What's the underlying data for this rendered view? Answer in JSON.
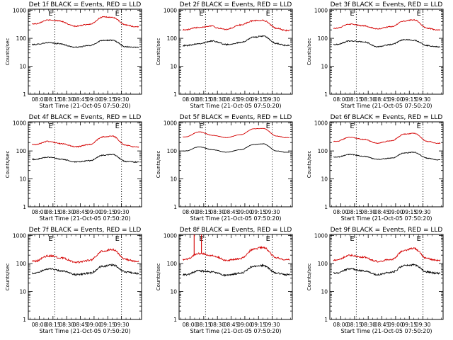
{
  "figure": {
    "layout": "3x3 grid of detector count-rate panels"
  },
  "colors": {
    "events": "#000000",
    "lld": "#d40000",
    "background": "#ffffff",
    "markers": "#000000"
  },
  "chart_data": [
    {
      "type": "line",
      "title": "Det 1f BLACK = Events, RED = LLD",
      "xlabel": "Start Time (21-Oct-05 07:50:20)",
      "ylabel": "Counts/sec",
      "x_ticks": [
        "08:00",
        "08:15",
        "08:30",
        "08:45",
        "09:00",
        "09:15",
        "09:30"
      ],
      "y_ticks": [
        "1",
        "10",
        "100",
        "1000"
      ],
      "yscale": "log",
      "ylim": [
        1,
        1100
      ],
      "x_range_minutes": [
        -12,
        112
      ],
      "event_markers": [
        17,
        90
      ],
      "marker_labels": [
        "E",
        "E"
      ],
      "noise": 0.04,
      "spikes": [],
      "series": [
        {
          "color": "#000000",
          "samples": [
            [
              -5,
              60
            ],
            [
              10,
              70
            ],
            [
              20,
              65
            ],
            [
              40,
              48
            ],
            [
              55,
              55
            ],
            [
              70,
              85
            ],
            [
              80,
              85
            ],
            [
              95,
              50
            ],
            [
              105,
              48
            ]
          ]
        },
        {
          "color": "#d40000",
          "samples": [
            [
              -5,
              330
            ],
            [
              10,
              450
            ],
            [
              20,
              430
            ],
            [
              40,
              270
            ],
            [
              55,
              320
            ],
            [
              70,
              580
            ],
            [
              80,
              560
            ],
            [
              95,
              300
            ],
            [
              105,
              260
            ]
          ]
        }
      ]
    },
    {
      "type": "line",
      "title": "Det 2f BLACK = Events, RED = LLD",
      "xlabel": "Start Time (21-Oct-05 07:50:20)",
      "ylabel": "Counts/sec",
      "x_ticks": [
        "08:00",
        "08:15",
        "08:30",
        "08:45",
        "09:00",
        "09:15",
        "09:30"
      ],
      "y_ticks": [
        "1",
        "10",
        "100",
        "1000"
      ],
      "yscale": "log",
      "ylim": [
        1,
        1100
      ],
      "x_range_minutes": [
        -12,
        112
      ],
      "event_markers": [
        17,
        90
      ],
      "marker_labels": [
        "E",
        "E"
      ],
      "noise": 0.05,
      "spikes": [],
      "series": [
        {
          "color": "#000000",
          "samples": [
            [
              -5,
              55
            ],
            [
              10,
              65
            ],
            [
              25,
              80
            ],
            [
              40,
              60
            ],
            [
              55,
              70
            ],
            [
              70,
              110
            ],
            [
              80,
              120
            ],
            [
              95,
              65
            ],
            [
              105,
              55
            ]
          ]
        },
        {
          "color": "#d40000",
          "samples": [
            [
              -5,
              200
            ],
            [
              10,
              250
            ],
            [
              25,
              280
            ],
            [
              30,
              230
            ],
            [
              40,
              210
            ],
            [
              55,
              300
            ],
            [
              70,
              430
            ],
            [
              80,
              440
            ],
            [
              95,
              230
            ],
            [
              105,
              190
            ]
          ]
        }
      ]
    },
    {
      "type": "line",
      "title": "Det 3f BLACK = Events, RED = LLD",
      "xlabel": "Start Time (21-Oct-05 07:50:20)",
      "ylabel": "Counts/sec",
      "x_ticks": [
        "08:00",
        "08:15",
        "08:30",
        "08:45",
        "09:00",
        "09:15",
        "09:30"
      ],
      "y_ticks": [
        "1",
        "10",
        "100",
        "1000"
      ],
      "yscale": "log",
      "ylim": [
        1,
        1100
      ],
      "x_range_minutes": [
        -12,
        112
      ],
      "event_markers": [
        17,
        90
      ],
      "marker_labels": [
        "E",
        "E"
      ],
      "noise": 0.04,
      "spikes": [],
      "series": [
        {
          "color": "#000000",
          "samples": [
            [
              -5,
              60
            ],
            [
              10,
              80
            ],
            [
              25,
              75
            ],
            [
              40,
              50
            ],
            [
              55,
              60
            ],
            [
              70,
              90
            ],
            [
              80,
              85
            ],
            [
              95,
              55
            ],
            [
              105,
              50
            ]
          ]
        },
        {
          "color": "#d40000",
          "samples": [
            [
              -5,
              230
            ],
            [
              10,
              320
            ],
            [
              25,
              280
            ],
            [
              40,
              220
            ],
            [
              55,
              260
            ],
            [
              70,
              420
            ],
            [
              80,
              460
            ],
            [
              95,
              230
            ],
            [
              105,
              200
            ]
          ]
        }
      ]
    },
    {
      "type": "line",
      "title": "Det 4f BLACK = Events, RED = LLD",
      "xlabel": "Start Time (21-Oct-05 07:50:20)",
      "ylabel": "Counts/sec",
      "x_ticks": [
        "08:00",
        "08:15",
        "08:30",
        "08:45",
        "09:00",
        "09:15",
        "09:30"
      ],
      "y_ticks": [
        "1",
        "10",
        "100",
        "1000"
      ],
      "yscale": "log",
      "ylim": [
        1,
        1100
      ],
      "x_range_minutes": [
        -12,
        112
      ],
      "event_markers": [
        17,
        90
      ],
      "marker_labels": [
        "E",
        "E"
      ],
      "noise": 0.04,
      "spikes": [],
      "series": [
        {
          "color": "#000000",
          "samples": [
            [
              -5,
              50
            ],
            [
              10,
              60
            ],
            [
              25,
              50
            ],
            [
              40,
              40
            ],
            [
              55,
              45
            ],
            [
              70,
              70
            ],
            [
              80,
              75
            ],
            [
              95,
              42
            ],
            [
              105,
              40
            ]
          ]
        },
        {
          "color": "#d40000",
          "samples": [
            [
              -5,
              170
            ],
            [
              10,
              220
            ],
            [
              25,
              180
            ],
            [
              40,
              140
            ],
            [
              55,
              170
            ],
            [
              70,
              320
            ],
            [
              80,
              340
            ],
            [
              95,
              160
            ],
            [
              105,
              140
            ]
          ]
        }
      ]
    },
    {
      "type": "line",
      "title": "Det 5f BLACK = Events, RED = LLD",
      "xlabel": "Start Time (21-Oct-05 07:50:20)",
      "ylabel": "Counts/sec",
      "x_ticks": [
        "08:00",
        "08:15",
        "08:30",
        "08:45",
        "09:00",
        "09:15",
        "09:30"
      ],
      "y_ticks": [
        "1",
        "10",
        "100",
        "1000"
      ],
      "yscale": "log",
      "ylim": [
        1,
        1100
      ],
      "x_range_minutes": [
        -12,
        112
      ],
      "event_markers": [
        17,
        90
      ],
      "marker_labels": [
        "E",
        "E"
      ],
      "noise": 0.015,
      "spikes": [],
      "series": [
        {
          "color": "#000000",
          "samples": [
            [
              -5,
              100
            ],
            [
              10,
              140
            ],
            [
              25,
              110
            ],
            [
              40,
              90
            ],
            [
              55,
              110
            ],
            [
              70,
              170
            ],
            [
              80,
              180
            ],
            [
              95,
              100
            ],
            [
              105,
              90
            ]
          ]
        },
        {
          "color": "#d40000",
          "samples": [
            [
              -5,
              320
            ],
            [
              10,
              480
            ],
            [
              25,
              360
            ],
            [
              40,
              300
            ],
            [
              55,
              380
            ],
            [
              70,
              620
            ],
            [
              80,
              640
            ],
            [
              95,
              340
            ],
            [
              105,
              300
            ]
          ]
        }
      ]
    },
    {
      "type": "line",
      "title": "Det 6f BLACK = Events, RED = LLD",
      "xlabel": "Start Time (21-Oct-05 07:50:20)",
      "ylabel": "Counts/sec",
      "x_ticks": [
        "08:00",
        "08:15",
        "08:30",
        "08:45",
        "09:00",
        "09:15",
        "09:30"
      ],
      "y_ticks": [
        "1",
        "10",
        "100",
        "1000"
      ],
      "yscale": "log",
      "ylim": [
        1,
        1100
      ],
      "x_range_minutes": [
        -12,
        112
      ],
      "event_markers": [
        17,
        90
      ],
      "marker_labels": [
        "E",
        "E"
      ],
      "noise": 0.03,
      "spikes": [],
      "series": [
        {
          "color": "#000000",
          "samples": [
            [
              -5,
              60
            ],
            [
              10,
              75
            ],
            [
              25,
              65
            ],
            [
              40,
              50
            ],
            [
              55,
              55
            ],
            [
              70,
              85
            ],
            [
              80,
              90
            ],
            [
              95,
              55
            ],
            [
              105,
              48
            ]
          ]
        },
        {
          "color": "#d40000",
          "samples": [
            [
              -5,
              220
            ],
            [
              10,
              310
            ],
            [
              25,
              260
            ],
            [
              40,
              190
            ],
            [
              55,
              230
            ],
            [
              70,
              400
            ],
            [
              80,
              430
            ],
            [
              95,
              220
            ],
            [
              105,
              190
            ]
          ]
        }
      ]
    },
    {
      "type": "line",
      "title": "Det 7f BLACK = Events, RED = LLD",
      "xlabel": "Start Time (21-Oct-05 07:50:20)",
      "ylabel": "Counts/sec",
      "x_ticks": [
        "08:00",
        "08:15",
        "08:30",
        "08:45",
        "09:00",
        "09:15",
        "09:30"
      ],
      "y_ticks": [
        "1",
        "10",
        "100",
        "1000"
      ],
      "yscale": "log",
      "ylim": [
        1,
        1100
      ],
      "x_range_minutes": [
        -12,
        112
      ],
      "event_markers": [
        17,
        90
      ],
      "marker_labels": [
        "E",
        "E"
      ],
      "noise": 0.07,
      "spikes": [],
      "series": [
        {
          "color": "#000000",
          "samples": [
            [
              -5,
              45
            ],
            [
              10,
              65
            ],
            [
              25,
              55
            ],
            [
              40,
              40
            ],
            [
              55,
              45
            ],
            [
              70,
              80
            ],
            [
              80,
              90
            ],
            [
              95,
              50
            ],
            [
              105,
              45
            ]
          ]
        },
        {
          "color": "#d40000",
          "samples": [
            [
              -5,
              120
            ],
            [
              10,
              190
            ],
            [
              25,
              160
            ],
            [
              40,
              110
            ],
            [
              55,
              130
            ],
            [
              70,
              280
            ],
            [
              80,
              320
            ],
            [
              95,
              140
            ],
            [
              105,
              120
            ]
          ]
        }
      ]
    },
    {
      "type": "line",
      "title": "Det 8f BLACK = Events, RED = LLD",
      "xlabel": "Start Time (21-Oct-05 07:50:20)",
      "ylabel": "Counts/sec",
      "x_ticks": [
        "08:00",
        "08:15",
        "08:30",
        "08:45",
        "09:00",
        "09:15",
        "09:30"
      ],
      "y_ticks": [
        "1",
        "10",
        "100",
        "1000"
      ],
      "yscale": "log",
      "ylim": [
        1,
        1100
      ],
      "x_range_minutes": [
        -12,
        112
      ],
      "event_markers": [
        17,
        90
      ],
      "marker_labels": [
        "E",
        "E"
      ],
      "noise": 0.07,
      "spikes": [
        4.5,
        12.5
      ],
      "series": [
        {
          "color": "#000000",
          "samples": [
            [
              -5,
              40
            ],
            [
              10,
              55
            ],
            [
              25,
              50
            ],
            [
              40,
              38
            ],
            [
              55,
              45
            ],
            [
              70,
              80
            ],
            [
              80,
              85
            ],
            [
              95,
              45
            ],
            [
              105,
              40
            ]
          ]
        },
        {
          "color": "#d40000",
          "samples": [
            [
              -5,
              140
            ],
            [
              10,
              230
            ],
            [
              25,
              190
            ],
            [
              40,
              130
            ],
            [
              55,
              150
            ],
            [
              70,
              330
            ],
            [
              80,
              380
            ],
            [
              95,
              160
            ],
            [
              105,
              140
            ]
          ]
        }
      ]
    },
    {
      "type": "line",
      "title": "Det 9f BLACK = Events, RED = LLD",
      "xlabel": "Start Time (21-Oct-05 07:50:20)",
      "ylabel": "Counts/sec",
      "x_ticks": [
        "08:00",
        "08:15",
        "08:30",
        "08:45",
        "09:00",
        "09:15",
        "09:30"
      ],
      "y_ticks": [
        "1",
        "10",
        "100",
        "1000"
      ],
      "yscale": "log",
      "ylim": [
        1,
        1100
      ],
      "x_range_minutes": [
        -12,
        112
      ],
      "event_markers": [
        17,
        90
      ],
      "marker_labels": [
        "E",
        "E"
      ],
      "noise": 0.07,
      "spikes": [],
      "series": [
        {
          "color": "#000000",
          "samples": [
            [
              -5,
              45
            ],
            [
              10,
              65
            ],
            [
              25,
              55
            ],
            [
              40,
              40
            ],
            [
              55,
              48
            ],
            [
              70,
              85
            ],
            [
              80,
              90
            ],
            [
              95,
              50
            ],
            [
              105,
              45
            ]
          ]
        },
        {
          "color": "#d40000",
          "samples": [
            [
              -5,
              130
            ],
            [
              10,
              200
            ],
            [
              25,
              170
            ],
            [
              40,
              120
            ],
            [
              55,
              140
            ],
            [
              70,
              300
            ],
            [
              80,
              350
            ],
            [
              95,
              150
            ],
            [
              105,
              130
            ]
          ]
        }
      ]
    }
  ]
}
